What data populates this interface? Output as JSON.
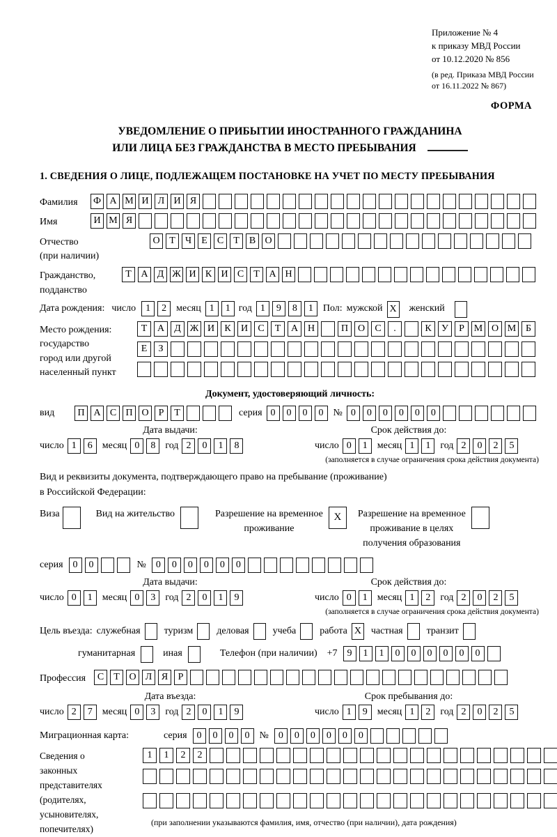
{
  "labels": {
    "day": "число",
    "month": "месяц",
    "year": "год",
    "series": "серия",
    "number": "№",
    "issue_date": "Дата выдачи:",
    "valid_until": "Срок действия до:",
    "validity_footnote": "(заполняется в случае ограничения срока действия документа)"
  },
  "header": {
    "appendix_lines": [
      "Приложение № 4",
      "к приказу МВД России",
      "от 10.12.2020 № 856"
    ],
    "amendment_lines": [
      "(в ред. Приказа МВД России",
      "от 16.11.2022 № 867)"
    ],
    "form_label": "ФОРМА"
  },
  "title": {
    "line1": "УВЕДОМЛЕНИЕ О ПРИБЫТИИ ИНОСТРАННОГО ГРАЖДАНИНА",
    "line2": "ИЛИ ЛИЦА БЕЗ ГРАЖДАНСТВА В МЕСТО ПРЕБЫВАНИЯ"
  },
  "section1_heading": "1. СВЕДЕНИЯ О ЛИЦЕ, ПОДЛЕЖАЩЕМ ПОСТАНОВКЕ НА УЧЕТ ПО МЕСТУ ПРЕБЫВАНИЯ",
  "person": {
    "surname": {
      "label": "Фамилия",
      "value": "ФАМИЛИЯ"
    },
    "given_name": {
      "label": "Имя",
      "value": "ИМЯ"
    },
    "patronymic": {
      "label": "Отчество",
      "note": "(при наличии)",
      "value": "ОТЧЕСТВО"
    },
    "citizenship": {
      "label": "Гражданство,",
      "label2": "подданство",
      "value": "ТАДЖИКИСТАН"
    },
    "birth_date": {
      "label": "Дата рождения:",
      "day": "12",
      "month": "11",
      "year": "1981"
    },
    "sex": {
      "label": "Пол:",
      "male_label": "мужской",
      "male_mark": "X",
      "female_label": "женский",
      "female_mark": ""
    },
    "birth_place": {
      "label": "Место рождения:",
      "sublabel1": "государство",
      "sublabel2": "город или другой",
      "sublabel3": "населенный пункт",
      "line1": "ТАДЖИКИСТАН ПОС. КУРМОМБ",
      "line2": "ЕЗ",
      "line3": ""
    }
  },
  "identity_doc": {
    "heading": "Документ, удостоверяющий личность:",
    "kind_label": "вид",
    "kind": "ПАСПОРТ",
    "series": "0000",
    "number": "000000",
    "issue": {
      "day": "16",
      "month": "08",
      "year": "2018"
    },
    "expiry": {
      "day": "01",
      "month": "11",
      "year": "2025"
    }
  },
  "residence_doc": {
    "intro1": "Вид и реквизиты документа, подтверждающего право на пребывание (проживание)",
    "intro2": "в Российской Федерации:",
    "options": {
      "visa": {
        "label": "Виза",
        "mark": ""
      },
      "residence_permit": {
        "label": "Вид на жительство",
        "mark": ""
      },
      "temp_residence": {
        "label1": "Разрешение на временное",
        "label2": "проживание",
        "mark": "X"
      },
      "temp_residence_edu": {
        "label1": "Разрешение на временное",
        "label2": "проживание в целях",
        "label3": "получения образования",
        "mark": ""
      }
    },
    "series": "00",
    "number": "000000",
    "issue": {
      "day": "01",
      "month": "03",
      "year": "2019"
    },
    "expiry": {
      "day": "01",
      "month": "12",
      "year": "2025"
    }
  },
  "entry_purpose": {
    "label": "Цель въезда:",
    "options": [
      {
        "label": "служебная",
        "mark": ""
      },
      {
        "label": "туризм",
        "mark": ""
      },
      {
        "label": "деловая",
        "mark": ""
      },
      {
        "label": "учеба",
        "mark": ""
      },
      {
        "label": "работа",
        "mark": "X"
      },
      {
        "label": "частная",
        "mark": ""
      },
      {
        "label": "транзит",
        "mark": ""
      },
      {
        "label": "гуманитарная",
        "mark": ""
      },
      {
        "label": "иная",
        "mark": ""
      }
    ],
    "phone": {
      "label": "Телефон (при наличии)",
      "prefix": "+7",
      "value": "911000000"
    }
  },
  "profession": {
    "label": "Профессия",
    "value": "СТОЛЯР"
  },
  "entry_date": {
    "heading": "Дата въезда:",
    "day": "27",
    "month": "03",
    "year": "2019"
  },
  "stay_until": {
    "heading": "Срок пребывания до:",
    "day": "19",
    "month": "12",
    "year": "2025"
  },
  "migration_card": {
    "label": "Миграционная карта:",
    "series": "0000",
    "number": "000000"
  },
  "legal_reps": {
    "label_lines": [
      "Сведения о",
      "законных",
      "представителях",
      "(родителях,",
      "усыновителях,",
      "попечителях)"
    ],
    "line1": "1122",
    "line2": "",
    "line3": "",
    "footnote": "(при заполнении указываются фамилия, имя, отчество (при наличии), дата рождения)"
  }
}
